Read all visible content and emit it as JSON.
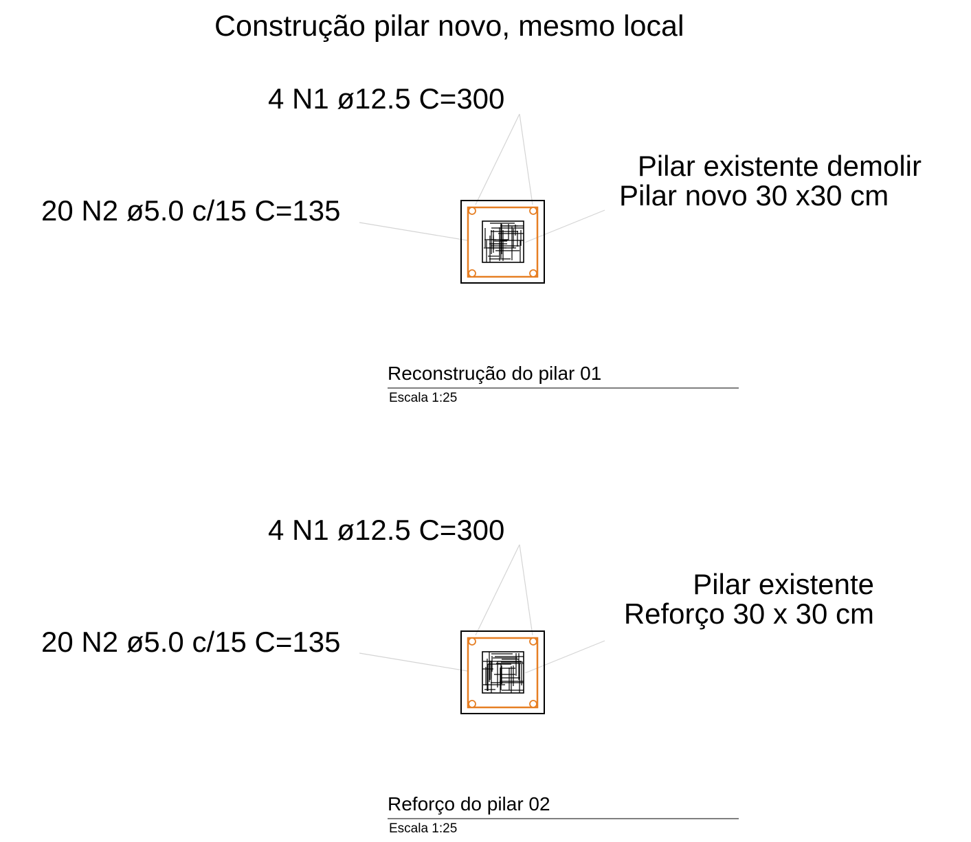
{
  "page_title": "Construção pilar novo, mesmo local",
  "colors": {
    "stirrup": "#e67e22",
    "leader": "#d4d4d4",
    "outline": "#000000",
    "title_rule": "#555555"
  },
  "details": [
    {
      "id": "pilar-01",
      "longitudinal_label": "4 N1 ø12.5 C=300",
      "stirrup_label": "20 N2 ø5.0 c/15 C=135",
      "description_line1": "Pilar existente demolir",
      "description_line2": "Pilar novo 30 x30 cm",
      "title": "Reconstrução do pilar 01",
      "scale": "Escala 1:25"
    },
    {
      "id": "pilar-02",
      "longitudinal_label": "4 N1 ø12.5 C=300",
      "stirrup_label": "20 N2 ø5.0 c/15 C=135",
      "description_line1": "Pilar existente",
      "description_line2": "Reforço 30 x 30 cm",
      "title": "Reforço do pilar 02",
      "scale": "Escala 1:25"
    }
  ]
}
